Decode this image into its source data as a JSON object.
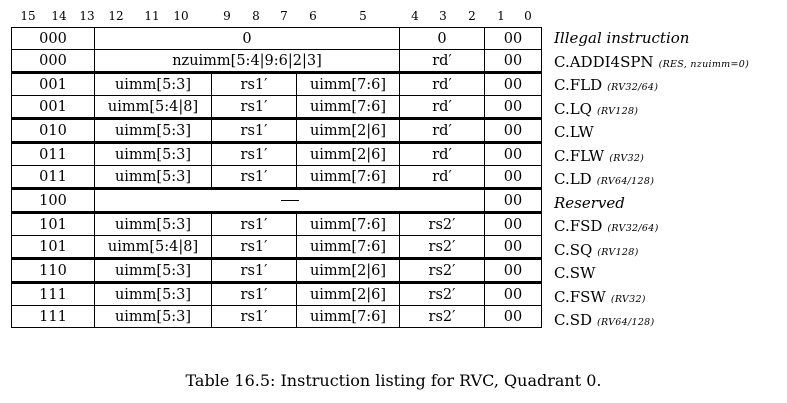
{
  "bit_numbers": [
    "15",
    "14",
    "13",
    "12",
    "11",
    "10",
    "9",
    "8",
    "7",
    "6",
    "5",
    "4",
    "3",
    "2",
    "1",
    "0"
  ],
  "rows": [
    {
      "cells": [
        "000",
        "0",
        "0",
        "00"
      ],
      "name": "Illegal instruction",
      "note": "",
      "italic": true
    },
    {
      "cells": [
        "000",
        "nzuimm[5:4|9:6|2|3]",
        "rd′",
        "00"
      ],
      "name": "C.ADDI4SPN",
      "note": "(RES, nzuimm=0)",
      "italic": false
    },
    {
      "cells": [
        "001",
        "uimm[5:3]",
        "rs1′",
        "uimm[7:6]",
        "rd′",
        "00"
      ],
      "name": "C.FLD",
      "note": "(RV32/64)",
      "italic": false
    },
    {
      "cells": [
        "001",
        "uimm[5:4|8]",
        "rs1′",
        "uimm[7:6]",
        "rd′",
        "00"
      ],
      "name": "C.LQ",
      "note": "(RV128)",
      "italic": false
    },
    {
      "cells": [
        "010",
        "uimm[5:3]",
        "rs1′",
        "uimm[2|6]",
        "rd′",
        "00"
      ],
      "name": "C.LW",
      "note": "",
      "italic": false
    },
    {
      "cells": [
        "011",
        "uimm[5:3]",
        "rs1′",
        "uimm[2|6]",
        "rd′",
        "00"
      ],
      "name": "C.FLW",
      "note": "(RV32)",
      "italic": false
    },
    {
      "cells": [
        "011",
        "uimm[5:3]",
        "rs1′",
        "uimm[7:6]",
        "rd′",
        "00"
      ],
      "name": "C.LD",
      "note": "(RV64/128)",
      "italic": false
    },
    {
      "cells": [
        "100",
        "—",
        "00"
      ],
      "name": "Reserved",
      "note": "",
      "italic": true
    },
    {
      "cells": [
        "101",
        "uimm[5:3]",
        "rs1′",
        "uimm[7:6]",
        "rs2′",
        "00"
      ],
      "name": "C.FSD",
      "note": "(RV32/64)",
      "italic": false
    },
    {
      "cells": [
        "101",
        "uimm[5:4|8]",
        "rs1′",
        "uimm[7:6]",
        "rs2′",
        "00"
      ],
      "name": "C.SQ",
      "note": "(RV128)",
      "italic": false
    },
    {
      "cells": [
        "110",
        "uimm[5:3]",
        "rs1′",
        "uimm[2|6]",
        "rs2′",
        "00"
      ],
      "name": "C.SW",
      "note": "",
      "italic": false
    },
    {
      "cells": [
        "111",
        "uimm[5:3]",
        "rs1′",
        "uimm[2|6]",
        "rs2′",
        "00"
      ],
      "name": "C.FSW",
      "note": "(RV32)",
      "italic": false
    },
    {
      "cells": [
        "111",
        "uimm[5:3]",
        "rs1′",
        "uimm[7:6]",
        "rs2′",
        "00"
      ],
      "name": "C.SD",
      "note": "(RV64/128)",
      "italic": false
    }
  ],
  "caption": "Table 16.5: Instruction listing for RVC, Quadrant 0."
}
